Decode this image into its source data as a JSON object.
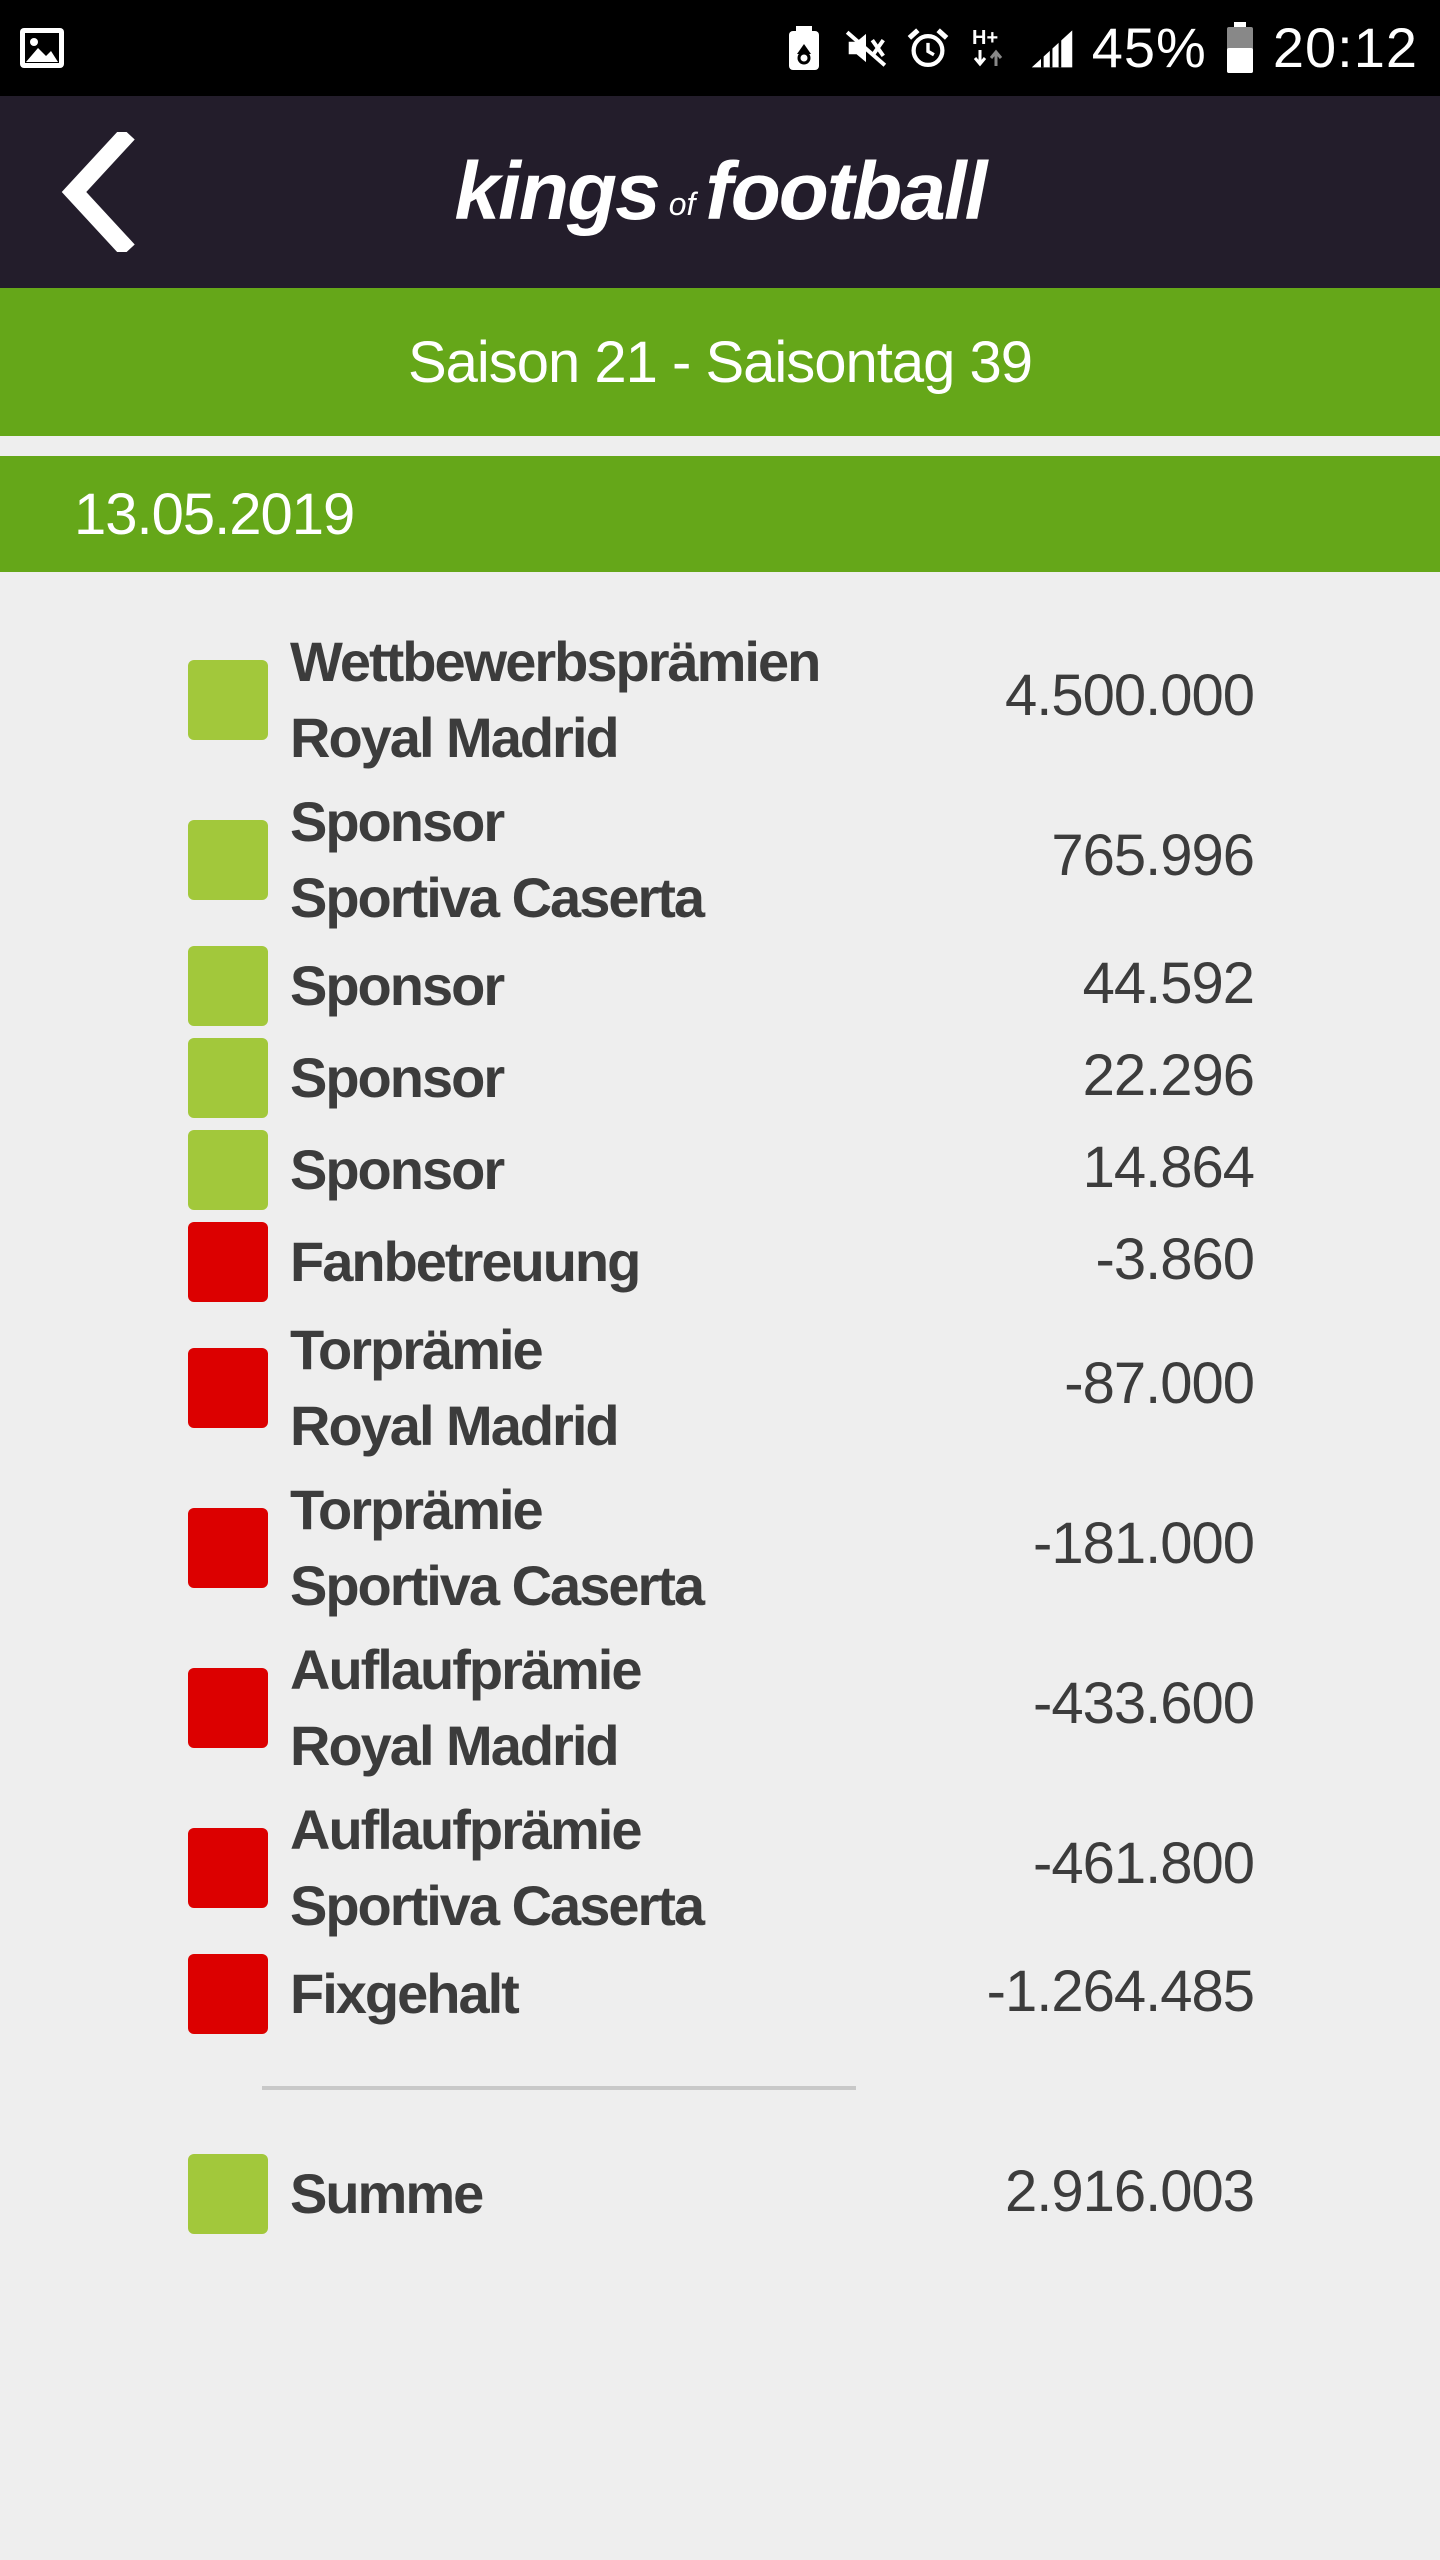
{
  "status_bar": {
    "battery_percent": "45%",
    "time": "20:12",
    "network_type": "H+",
    "icons": [
      "gallery-icon",
      "recycle-battery-icon",
      "vibrate-mute-icon",
      "alarm-icon",
      "network-hplus-icon",
      "signal-icon",
      "battery-icon"
    ]
  },
  "header": {
    "logo_part1": "kings",
    "logo_part2": "of",
    "logo_part3": "football",
    "back_icon": "chevron-left-icon"
  },
  "season": {
    "title": "Saison 21 - Saisontag 39"
  },
  "date": "13.05.2019",
  "colors": {
    "positive": "#a2c83b",
    "negative": "#dc0000",
    "green_bar": "#65a719",
    "header_bg": "#231d2b"
  },
  "entries": [
    {
      "line1": "Wettbewerbsprämien",
      "line2": "Royal Madrid",
      "value": "4.500.000",
      "type": "positive"
    },
    {
      "line1": "Sponsor",
      "line2": "Sportiva Caserta",
      "value": "765.996",
      "type": "positive"
    },
    {
      "line1": "Sponsor",
      "line2": "",
      "value": "44.592",
      "type": "positive"
    },
    {
      "line1": "Sponsor",
      "line2": "",
      "value": "22.296",
      "type": "positive"
    },
    {
      "line1": "Sponsor",
      "line2": "",
      "value": "14.864",
      "type": "positive"
    },
    {
      "line1": "Fanbetreuung",
      "line2": "",
      "value": "-3.860",
      "type": "negative"
    },
    {
      "line1": "Torprämie",
      "line2": "Royal Madrid",
      "value": "-87.000",
      "type": "negative"
    },
    {
      "line1": "Torprämie",
      "line2": "Sportiva Caserta",
      "value": "-181.000",
      "type": "negative"
    },
    {
      "line1": "Auflaufprämie",
      "line2": "Royal Madrid",
      "value": "-433.600",
      "type": "negative"
    },
    {
      "line1": "Auflaufprämie",
      "line2": "Sportiva Caserta",
      "value": "-461.800",
      "type": "negative"
    },
    {
      "line1": "Fixgehalt",
      "line2": "",
      "value": "-1.264.485",
      "type": "negative"
    }
  ],
  "summary": {
    "label": "Summe",
    "value": "2.916.003",
    "type": "positive"
  }
}
